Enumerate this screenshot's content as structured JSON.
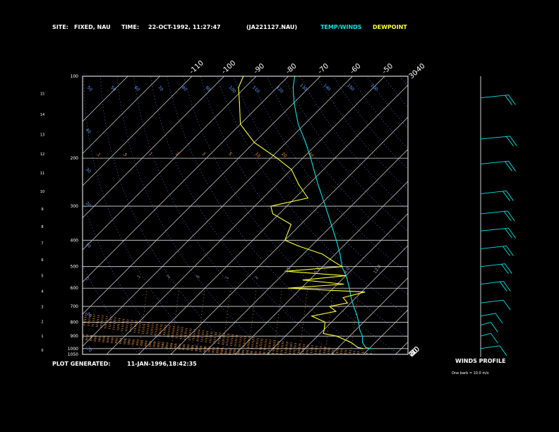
{
  "header": {
    "site_label": "SITE:",
    "site_value": "FIXED, NAU",
    "time_label": "TIME:",
    "time_value": "22-OCT-1992, 11:27:47",
    "file_id": "(JA221127.NAU)",
    "legend_temp_winds": "TEMP/WINDS",
    "legend_dewpoint": "DEWPOINT"
  },
  "footer": {
    "plot_generated_label": "PLOT GENERATED:",
    "plot_generated_value": "11-JAN-1996,18:42:35"
  },
  "winds_profile": {
    "title": "WINDS PROFILE",
    "note": "One barb = 10.0 m/s"
  },
  "colors": {
    "background": "#000000",
    "frame": "#ffffff",
    "temperature": "#00e5e5",
    "dewpoint": "#ffff33",
    "mixing_ratio": "#ff9933",
    "moist_adiabat": "#ffa040",
    "dry_adiabat_label": "#5fa0ff"
  },
  "chart_data": {
    "type": "line",
    "skew_t": true,
    "y_scale": "log",
    "pressure_axis_hpa": [
      100,
      200,
      300,
      400,
      500,
      600,
      700,
      800,
      900,
      1000
    ],
    "pressure_axis_extra_labels": [
      "1000",
      "1050"
    ],
    "ylim_hpa": [
      1050,
      100
    ],
    "height_axis_km": [
      0,
      1,
      2,
      3,
      4,
      5,
      6,
      7,
      8,
      9,
      10,
      11,
      12,
      13,
      14,
      15
    ],
    "isotherm_labels_top": [
      -110,
      -100,
      -90,
      -80,
      -70,
      -60,
      -50,
      -40
    ],
    "isotherm_labels_right": [
      -30,
      -20,
      -10,
      0,
      10,
      20,
      30
    ],
    "dry_adiabat_labels_top": [
      "50",
      "50",
      "60",
      "70",
      "80",
      "90",
      "100",
      "110",
      "120",
      "130",
      "140",
      "150",
      "160"
    ],
    "dry_adiabat_labels_left": [
      "40",
      "30",
      "20",
      "10",
      "0",
      "-10",
      "-20",
      "-30",
      "-35"
    ],
    "mixing_ratio_labels": [
      ".1",
      ".5",
      "1",
      "2",
      "3",
      "5",
      "10",
      "20",
      "40"
    ],
    "moist_adiabat_labels": [
      ".1",
      ".2",
      ".5",
      "1",
      "2",
      "3.5",
      "5.0",
      "8.0",
      "12.0"
    ],
    "series": [
      {
        "name": "TEMP/WINDS",
        "points": [
          {
            "p": 1000,
            "t": 30.5
          },
          {
            "p": 990,
            "t": 28.5
          },
          {
            "p": 950,
            "t": 26.0
          },
          {
            "p": 900,
            "t": 24.0
          },
          {
            "p": 850,
            "t": 21.0
          },
          {
            "p": 800,
            "t": 18.5
          },
          {
            "p": 750,
            "t": 15.5
          },
          {
            "p": 700,
            "t": 12.0
          },
          {
            "p": 650,
            "t": 8.5
          },
          {
            "p": 600,
            "t": 5.0
          },
          {
            "p": 550,
            "t": 1.0
          },
          {
            "p": 500,
            "t": -4.0
          },
          {
            "p": 450,
            "t": -8.5
          },
          {
            "p": 400,
            "t": -14.0
          },
          {
            "p": 350,
            "t": -20.5
          },
          {
            "p": 300,
            "t": -28.0
          },
          {
            "p": 250,
            "t": -37.0
          },
          {
            "p": 200,
            "t": -47.5
          },
          {
            "p": 175,
            "t": -54.0
          },
          {
            "p": 150,
            "t": -62.0
          },
          {
            "p": 125,
            "t": -70.0
          },
          {
            "p": 110,
            "t": -75.0
          },
          {
            "p": 100,
            "t": -78.0
          }
        ]
      },
      {
        "name": "DEWPOINT",
        "points": [
          {
            "p": 1000,
            "t": 28.0
          },
          {
            "p": 990,
            "t": 26.0
          },
          {
            "p": 950,
            "t": 22.5
          },
          {
            "p": 900,
            "t": 16.0
          },
          {
            "p": 880,
            "t": 11.0
          },
          {
            "p": 850,
            "t": 10.0
          },
          {
            "p": 800,
            "t": 8.0
          },
          {
            "p": 760,
            "t": 2.0
          },
          {
            "p": 730,
            "t": 8.0
          },
          {
            "p": 700,
            "t": 4.5
          },
          {
            "p": 680,
            "t": 9.0
          },
          {
            "p": 650,
            "t": 6.0
          },
          {
            "p": 620,
            "t": 11.0
          },
          {
            "p": 600,
            "t": -14.0
          },
          {
            "p": 580,
            "t": 2.0
          },
          {
            "p": 560,
            "t": -12.0
          },
          {
            "p": 540,
            "t": 0.0
          },
          {
            "p": 520,
            "t": -20.0
          },
          {
            "p": 500,
            "t": -4.0
          },
          {
            "p": 480,
            "t": -8.0
          },
          {
            "p": 450,
            "t": -14.0
          },
          {
            "p": 420,
            "t": -24.0
          },
          {
            "p": 400,
            "t": -30.0
          },
          {
            "p": 350,
            "t": -33.0
          },
          {
            "p": 320,
            "t": -42.0
          },
          {
            "p": 300,
            "t": -45.0
          },
          {
            "p": 280,
            "t": -36.0
          },
          {
            "p": 250,
            "t": -43.0
          },
          {
            "p": 220,
            "t": -50.0
          },
          {
            "p": 200,
            "t": -58.0
          },
          {
            "p": 175,
            "t": -70.0
          },
          {
            "p": 150,
            "t": -80.0
          },
          {
            "p": 125,
            "t": -87.0
          },
          {
            "p": 110,
            "t": -92.0
          },
          {
            "p": 100,
            "t": -94.0
          }
        ]
      }
    ],
    "winds": [
      {
        "p": 120,
        "speed_ms": 20,
        "dir_deg": 250
      },
      {
        "p": 170,
        "speed_ms": 20,
        "dir_deg": 260
      },
      {
        "p": 210,
        "speed_ms": 20,
        "dir_deg": 250
      },
      {
        "p": 270,
        "speed_ms": 20,
        "dir_deg": 240
      },
      {
        "p": 320,
        "speed_ms": 20,
        "dir_deg": 245
      },
      {
        "p": 370,
        "speed_ms": 20,
        "dir_deg": 250
      },
      {
        "p": 430,
        "speed_ms": 20,
        "dir_deg": 240
      },
      {
        "p": 500,
        "speed_ms": 20,
        "dir_deg": 235
      },
      {
        "p": 580,
        "speed_ms": 20,
        "dir_deg": 230
      },
      {
        "p": 680,
        "speed_ms": 10,
        "dir_deg": 230
      },
      {
        "p": 760,
        "speed_ms": 10,
        "dir_deg": 210
      },
      {
        "p": 820,
        "speed_ms": 10,
        "dir_deg": 200
      },
      {
        "p": 900,
        "speed_ms": 10,
        "dir_deg": 160
      },
      {
        "p": 1000,
        "speed_ms": 10,
        "dir_deg": 140
      }
    ]
  }
}
